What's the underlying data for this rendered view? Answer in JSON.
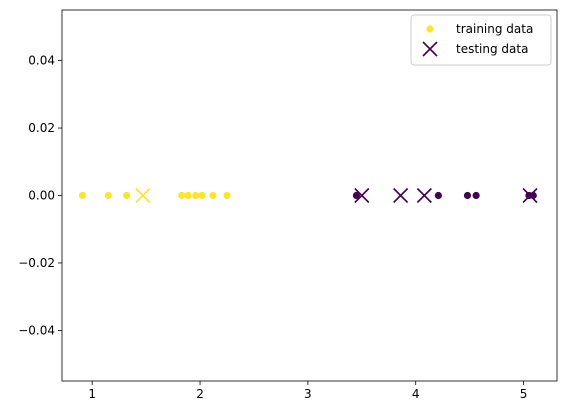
{
  "chart_data": {
    "type": "scatter",
    "title": "",
    "xlabel": "",
    "ylabel": "",
    "xlim": [
      0.72,
      5.31
    ],
    "ylim": [
      -0.055,
      0.055
    ],
    "x_ticks": [
      1,
      2,
      3,
      4,
      5
    ],
    "y_ticks": [
      -0.04,
      -0.02,
      0.0,
      0.02,
      0.04
    ],
    "x_tick_labels": [
      "1",
      "2",
      "3",
      "4",
      "5"
    ],
    "y_tick_labels": [
      "−0.04",
      "−0.02",
      "0.00",
      "0.02",
      "0.04"
    ],
    "grid": false,
    "legend_position": "top-right",
    "colors": {
      "class_0": "#fde725",
      "class_1": "#440154"
    },
    "series": [
      {
        "name": "training data",
        "marker": "circle",
        "points": [
          {
            "x": 0.91,
            "y": 0.0,
            "class": 0
          },
          {
            "x": 1.15,
            "y": 0.0,
            "class": 0
          },
          {
            "x": 1.32,
            "y": 0.0,
            "class": 0
          },
          {
            "x": 1.83,
            "y": 0.0,
            "class": 0
          },
          {
            "x": 1.89,
            "y": 0.0,
            "class": 0
          },
          {
            "x": 1.96,
            "y": 0.0,
            "class": 0
          },
          {
            "x": 2.02,
            "y": 0.0,
            "class": 0
          },
          {
            "x": 2.12,
            "y": 0.0,
            "class": 0
          },
          {
            "x": 2.25,
            "y": 0.0,
            "class": 0
          },
          {
            "x": 3.45,
            "y": 0.0,
            "class": 1
          },
          {
            "x": 4.21,
            "y": 0.0,
            "class": 1
          },
          {
            "x": 4.48,
            "y": 0.0,
            "class": 1
          },
          {
            "x": 4.56,
            "y": 0.0,
            "class": 1
          },
          {
            "x": 5.05,
            "y": 0.0,
            "class": 1
          },
          {
            "x": 5.09,
            "y": 0.0,
            "class": 1
          }
        ]
      },
      {
        "name": "testing data",
        "marker": "x",
        "points": [
          {
            "x": 1.47,
            "y": 0.0,
            "class": 0
          },
          {
            "x": 3.5,
            "y": 0.0,
            "class": 1
          },
          {
            "x": 3.86,
            "y": 0.0,
            "class": 1
          },
          {
            "x": 4.08,
            "y": 0.0,
            "class": 1
          },
          {
            "x": 5.06,
            "y": 0.0,
            "class": 1
          }
        ]
      }
    ]
  }
}
